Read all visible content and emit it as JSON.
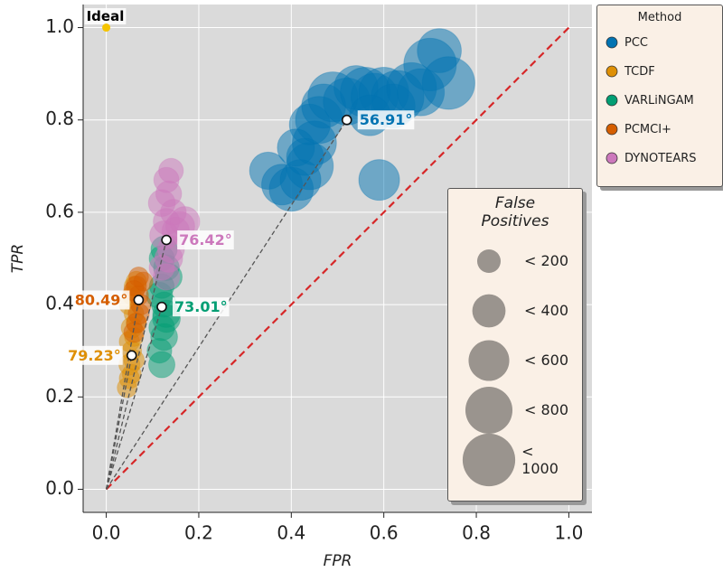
{
  "chart_data": {
    "type": "scatter",
    "x_label": "FPR",
    "y_label": "TPR",
    "xlim": [
      -0.05,
      1.05
    ],
    "ylim": [
      -0.05,
      1.05
    ],
    "xticks": [
      {
        "value": 0,
        "label": "0.0"
      },
      {
        "value": 0.2,
        "label": "0.2"
      },
      {
        "value": 0.4,
        "label": "0.4"
      },
      {
        "value": 0.6,
        "label": "0.6"
      },
      {
        "value": 0.8,
        "label": "0.8"
      },
      {
        "value": 1,
        "label": "1.0"
      }
    ],
    "yticks": [
      {
        "value": 0,
        "label": "0.0"
      },
      {
        "value": 0.2,
        "label": "0.2"
      },
      {
        "value": 0.4,
        "label": "0.4"
      },
      {
        "value": 0.6,
        "label": "0.6"
      },
      {
        "value": 0.8,
        "label": "0.8"
      },
      {
        "value": 1,
        "label": "1.0"
      }
    ],
    "grid": true,
    "legend_title": "Method",
    "ideal": {
      "label": "Ideal",
      "x": 0,
      "y": 1,
      "color": "#f5c400"
    },
    "series": [
      {
        "name": "PCC",
        "color": "#0173b2",
        "x": [
          0.35,
          0.38,
          0.4,
          0.42,
          0.44,
          0.43,
          0.45,
          0.44,
          0.46,
          0.47,
          0.49,
          0.52,
          0.54,
          0.56,
          0.58,
          0.6,
          0.62,
          0.63,
          0.66,
          0.68,
          0.7,
          0.72,
          0.74,
          0.59,
          0.41,
          0.57
        ],
        "values": [
          0.69,
          0.66,
          0.65,
          0.67,
          0.7,
          0.72,
          0.75,
          0.79,
          0.8,
          0.83,
          0.85,
          0.84,
          0.87,
          0.86,
          0.85,
          0.86,
          0.83,
          0.85,
          0.87,
          0.86,
          0.92,
          0.95,
          0.88,
          0.67,
          0.74,
          0.81
        ],
        "sizes": [
          500,
          600,
          700,
          600,
          800,
          500,
          700,
          600,
          800,
          700,
          900,
          800,
          700,
          900,
          800,
          900,
          700,
          1000,
          900,
          800,
          1000,
          700,
          1000,
          600,
          500,
          600
        ],
        "centroid": {
          "x": 0.52,
          "y": 0.8,
          "label": "56.91°"
        }
      },
      {
        "name": "TCDF",
        "color": "#de8f05",
        "x": [
          0.045,
          0.05,
          0.055,
          0.05,
          0.06,
          0.055,
          0.05,
          0.06,
          0.055,
          0.065,
          0.06,
          0.05,
          0.055,
          0.06,
          0.065
        ],
        "values": [
          0.22,
          0.24,
          0.25,
          0.27,
          0.28,
          0.3,
          0.32,
          0.33,
          0.35,
          0.36,
          0.38,
          0.4,
          0.42,
          0.44,
          0.45
        ],
        "sizes": [
          140,
          150,
          130,
          160,
          150,
          140,
          150,
          130,
          160,
          150,
          140,
          150,
          130,
          140,
          150
        ],
        "centroid": {
          "x": 0.055,
          "y": 0.29,
          "label": "79.23°"
        }
      },
      {
        "name": "VARLiNGAM",
        "color": "#029e73",
        "x": [
          0.12,
          0.115,
          0.125,
          0.12,
          0.13,
          0.125,
          0.115,
          0.12,
          0.135,
          0.13,
          0.12,
          0.125,
          0.13
        ],
        "values": [
          0.27,
          0.3,
          0.33,
          0.35,
          0.37,
          0.4,
          0.42,
          0.44,
          0.46,
          0.48,
          0.5,
          0.52,
          0.38
        ],
        "sizes": [
          250,
          220,
          260,
          240,
          280,
          230,
          250,
          220,
          260,
          240,
          230,
          250,
          270
        ],
        "centroid": {
          "x": 0.12,
          "y": 0.395,
          "label": "73.01°"
        }
      },
      {
        "name": "PCMCI+",
        "color": "#d55e00",
        "x": [
          0.06,
          0.065,
          0.07,
          0.075,
          0.07,
          0.065,
          0.08,
          0.07,
          0.06
        ],
        "values": [
          0.34,
          0.36,
          0.38,
          0.4,
          0.42,
          0.44,
          0.45,
          0.46,
          0.43
        ],
        "sizes": [
          150,
          140,
          160,
          150,
          140,
          150,
          130,
          140,
          150
        ],
        "centroid": {
          "x": 0.07,
          "y": 0.41,
          "label": "80.49°"
        }
      },
      {
        "name": "DYNOTEARS",
        "color": "#cc78bc",
        "x": [
          0.13,
          0.12,
          0.135,
          0.14,
          0.125,
          0.15,
          0.13,
          0.145,
          0.12,
          0.16,
          0.17,
          0.135,
          0.13,
          0.14
        ],
        "values": [
          0.46,
          0.48,
          0.5,
          0.52,
          0.55,
          0.56,
          0.58,
          0.6,
          0.62,
          0.57,
          0.58,
          0.64,
          0.67,
          0.69
        ],
        "sizes": [
          250,
          230,
          280,
          260,
          300,
          270,
          250,
          240,
          260,
          300,
          320,
          240,
          230,
          220
        ],
        "centroid": {
          "x": 0.13,
          "y": 0.54,
          "label": "76.42°"
        }
      }
    ],
    "size_legend": {
      "title": "False Positives",
      "entries": [
        {
          "value": 200,
          "label": "< 200"
        },
        {
          "value": 400,
          "label": "< 400"
        },
        {
          "value": 600,
          "label": "< 600"
        },
        {
          "value": 800,
          "label": "< 800"
        },
        {
          "value": 1000,
          "label": "< 1000"
        }
      ]
    }
  }
}
